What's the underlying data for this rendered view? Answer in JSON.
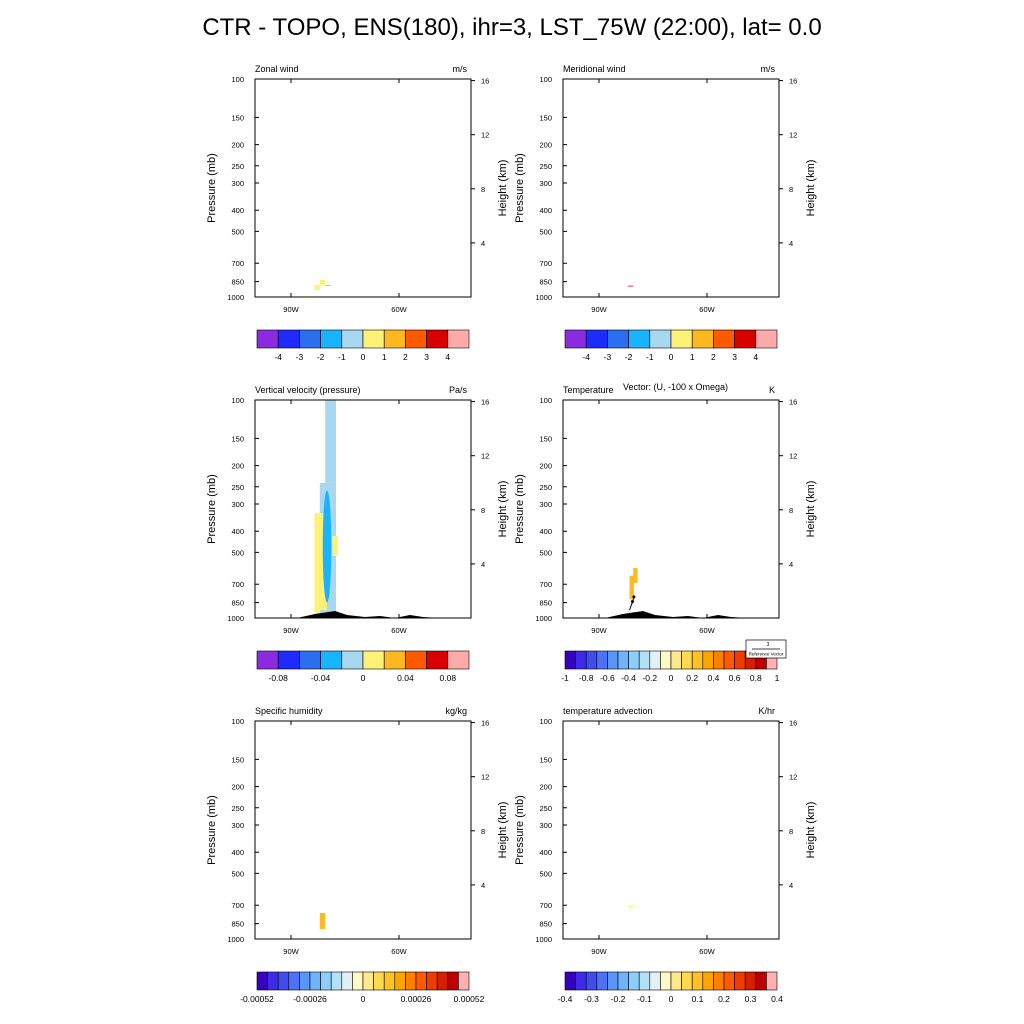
{
  "title": "CTR - TOPO, ENS(180), ihr=3, LST_75W (22:00), lat=  0.0",
  "common": {
    "left_axis_label": "Pressure (mb)",
    "right_axis_label": "Height (km)",
    "pressure_ticks": [
      "100",
      "150",
      "200",
      "250",
      "300",
      "400",
      "500",
      "700",
      "850",
      "1000"
    ],
    "pressure_values": [
      100,
      150,
      200,
      250,
      300,
      400,
      500,
      700,
      850,
      1000
    ],
    "height_ticks": [
      "4",
      "8",
      "12",
      "16"
    ],
    "height_values": [
      4,
      8,
      12,
      16
    ],
    "x_ticks": [
      "90W",
      "60W"
    ],
    "x_values": [
      -90,
      -60
    ],
    "xlim": [
      -100,
      -80
    ]
  },
  "reference_vector": {
    "value": "3",
    "label": "Reference Vector"
  },
  "chart_data": [
    {
      "type": "heatmap",
      "title": "Zonal wind",
      "units": "m/s",
      "colorbar": {
        "colors": [
          "#8a2be2",
          "#1e2bff",
          "#2b6ef0",
          "#19b4ff",
          "#a8d8f0",
          "#fff176",
          "#ffb81f",
          "#ff5a00",
          "#d90000",
          "#ffaaaa"
        ],
        "labels": [
          "-4",
          "-3",
          "-2",
          "-1",
          "0",
          "1",
          "2",
          "3",
          "4"
        ]
      },
      "fills": [
        {
          "x": [
            -82,
            -80.5
          ],
          "p": [
            835,
            880
          ],
          "color": "#fff176"
        },
        {
          "x": [
            -83.5,
            -82
          ],
          "p": [
            880,
            930
          ],
          "color": "#fff176"
        },
        {
          "x": [
            -80.5,
            -79
          ],
          "p": [
            880,
            890
          ],
          "color": "#ffb81f"
        }
      ],
      "terrain": false
    },
    {
      "type": "heatmap",
      "title": "Meridional wind",
      "units": "m/s",
      "colorbar": {
        "colors": [
          "#8a2be2",
          "#1e2bff",
          "#2b6ef0",
          "#19b4ff",
          "#a8d8f0",
          "#fff176",
          "#ffb81f",
          "#ff5a00",
          "#d90000",
          "#ffaaaa"
        ],
        "labels": [
          "-4",
          "-3",
          "-2",
          "-1",
          "0",
          "1",
          "2",
          "3",
          "4"
        ]
      },
      "fills": [
        {
          "x": [
            -82,
            -80.5
          ],
          "p": [
            888,
            895
          ],
          "color": "#d90000"
        }
      ],
      "terrain": false
    },
    {
      "type": "heatmap",
      "title": "Vertical velocity (pressure)",
      "units": "Pa/s",
      "colorbar": {
        "colors": [
          "#8a2be2",
          "#1e2bff",
          "#2b6ef0",
          "#19b4ff",
          "#a8d8f0",
          "#fff176",
          "#ffb81f",
          "#ff5a00",
          "#d90000",
          "#ffaaaa"
        ],
        "labels": [
          "-0.08",
          "-0.04",
          "0",
          "0.04",
          "0.08"
        ],
        "label_positions": [
          1,
          3,
          5,
          7,
          9
        ]
      },
      "fills": [
        {
          "x": [
            -80.5,
            -77.5
          ],
          "p": [
            100,
            240
          ],
          "color": "#a8d8f0"
        },
        {
          "x": [
            -82,
            -77.5
          ],
          "p": [
            240,
            980
          ],
          "color": "#a8d8f0"
        },
        {
          "x": [
            -83.5,
            -82
          ],
          "p": [
            330,
            990
          ],
          "color": "#fff176"
        },
        {
          "x": [
            -82,
            -80
          ],
          "p": [
            330,
            920
          ],
          "color": "#fff176"
        },
        {
          "x": [
            -78.5,
            -77
          ],
          "p": [
            420,
            520
          ],
          "color": "#fff176"
        }
      ],
      "ellipses": [
        {
          "cx": -80,
          "p_center": 430,
          "p_top": 260,
          "p_bottom": 850,
          "rx": 1.2,
          "color": "#19b4ff"
        }
      ],
      "terrain": true
    },
    {
      "type": "heatmap",
      "title": "Temperature",
      "overlay_title": "Vector: (U, -100 x Omega)",
      "units": "K",
      "colorbar": {
        "colors": [
          "#3a00c0",
          "#3d2be8",
          "#3f4cf0",
          "#4f72f5",
          "#5a95f8",
          "#6fb4fa",
          "#8ccdfa",
          "#b3e0f5",
          "#e0f0f5",
          "#fff9c4",
          "#ffe98a",
          "#ffd94f",
          "#ffc222",
          "#ffa500",
          "#ff7f00",
          "#ff5a00",
          "#f03c00",
          "#d81e00",
          "#c00000",
          "#ffb0b0"
        ],
        "labels": [
          "-1",
          "-0.8",
          "-0.6",
          "-0.4",
          "-0.2",
          "0",
          "0.2",
          "0.4",
          "0.6",
          "0.8",
          "1"
        ]
      },
      "fills": [
        {
          "x": [
            -80.5,
            -79.3
          ],
          "p": [
            590,
            690
          ],
          "color": "#ffb81f"
        },
        {
          "x": [
            -81.5,
            -80.3
          ],
          "p": [
            640,
            820
          ],
          "color": "#ffb81f"
        }
      ],
      "vectors": [
        {
          "x": -81.5,
          "p": 920,
          "dx": 0.8,
          "dp": -80
        },
        {
          "x": -80.8,
          "p": 860,
          "dx": 0.5,
          "dp": -60
        }
      ],
      "terrain": true
    },
    {
      "type": "heatmap",
      "title": "Specific humidity",
      "units": "kg/kg",
      "colorbar": {
        "colors": [
          "#3a00c0",
          "#3d2be8",
          "#3f4cf0",
          "#4f72f5",
          "#5a95f8",
          "#6fb4fa",
          "#8ccdfa",
          "#b3e0f5",
          "#e0f0f5",
          "#fff9c4",
          "#ffe98a",
          "#ffd94f",
          "#ffc222",
          "#ffa500",
          "#ff7f00",
          "#ff5a00",
          "#f03c00",
          "#d81e00",
          "#c00000",
          "#ffb0b0"
        ],
        "labels": [
          "-0.00052",
          "-0.00026",
          "0",
          "0.00026",
          "0.00052"
        ],
        "label_positions": [
          0,
          5,
          10,
          15,
          20
        ]
      },
      "fills": [
        {
          "x": [
            -82,
            -80.5
          ],
          "p": [
            760,
            900
          ],
          "color": "#ffb81f"
        }
      ],
      "terrain": false
    },
    {
      "type": "heatmap",
      "title": "temperature advection",
      "units": "K/hr",
      "colorbar": {
        "colors": [
          "#3a00c0",
          "#3d2be8",
          "#3f4cf0",
          "#4f72f5",
          "#5a95f8",
          "#6fb4fa",
          "#8ccdfa",
          "#b3e0f5",
          "#e0f0f5",
          "#fff9c4",
          "#ffe98a",
          "#ffd94f",
          "#ffc222",
          "#ffa500",
          "#ff7f00",
          "#ff5a00",
          "#f03c00",
          "#d81e00",
          "#c00000",
          "#ffb0b0"
        ],
        "labels": [
          "-0.4",
          "-0.3",
          "-0.2",
          "-0.1",
          "0",
          "0.1",
          "0.2",
          "0.3",
          "0.4"
        ]
      },
      "fills": [
        {
          "x": [
            -82,
            -80.5
          ],
          "p": [
            705,
            715
          ],
          "color": "#ffe98a"
        }
      ],
      "terrain": false
    }
  ]
}
